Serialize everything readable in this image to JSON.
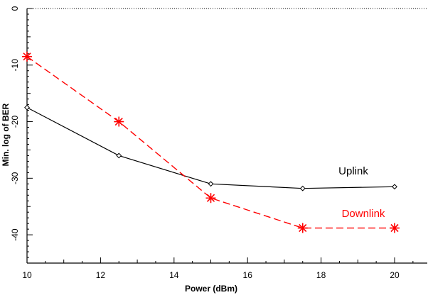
{
  "chart_data": {
    "type": "line",
    "xlabel": "Power (dBm)",
    "ylabel": "Min. log of BER",
    "xlim": [
      10,
      21
    ],
    "ylim": [
      -45,
      0
    ],
    "x_ticks": [
      10,
      12,
      14,
      16,
      18,
      20
    ],
    "y_ticks": [
      0,
      -10,
      -20,
      -30,
      -40
    ],
    "grid": false,
    "series": [
      {
        "name": "Uplink",
        "color": "#000000",
        "line_style": "solid",
        "marker": "diamond",
        "x": [
          10,
          12.5,
          15,
          17.5,
          20
        ],
        "y": [
          -17.5,
          -26,
          -31,
          -31.8,
          -31.5
        ]
      },
      {
        "name": "Downlink",
        "color": "#ff0000",
        "line_style": "dashed",
        "marker": "star",
        "x": [
          10,
          12.5,
          15,
          17.5,
          20
        ],
        "y": [
          -8.5,
          -20,
          -33.5,
          -38.8,
          -38.8
        ]
      }
    ]
  }
}
